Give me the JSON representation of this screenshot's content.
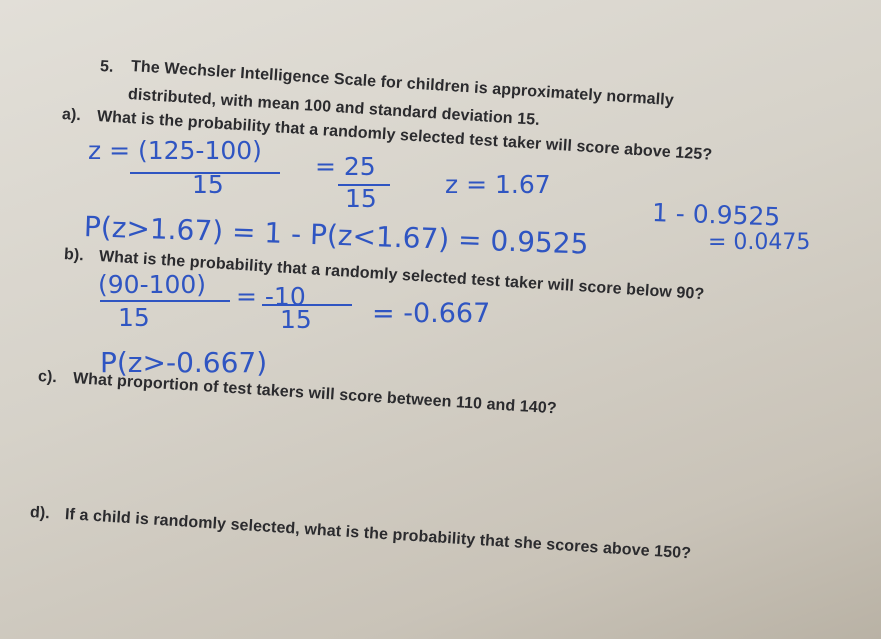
{
  "problem": {
    "number": "5.",
    "statement": [
      "The Wechsler Intelligence Scale for children is approximately normally",
      "distributed, with mean 100 and standard deviation 15."
    ]
  },
  "parts": [
    {
      "label": "a).",
      "question": "What is the probability that a randomly selected test taker will score above 125?"
    },
    {
      "label": "b).",
      "question": "What is the probability that a randomly selected test taker will score below 90?"
    },
    {
      "label": "c).",
      "question": "What proportion of test takers will score between 110 and 140?"
    },
    {
      "label": "d).",
      "question": "If a child is randomly selected, what is the probability that she scores above 150?"
    }
  ],
  "handwriting": {
    "a": {
      "z_numerator": "z = (125-100)",
      "z_denominator": "15",
      "equals_numerator": "= 25",
      "equals_denominator": "15",
      "z_value": "z = 1.67",
      "probability": "P(z>1.67) = 1 - P(z<1.67) = 0.9525",
      "complement": "1 - 0.9525",
      "answer": "= 0.0475"
    },
    "b": {
      "z_numerator": "(90-100)",
      "z_denominator": "15",
      "equals_numerator": "= -10",
      "equals_denominator": "15",
      "z_value": "= -0.667",
      "probability": "P(z>-0.667)"
    }
  }
}
